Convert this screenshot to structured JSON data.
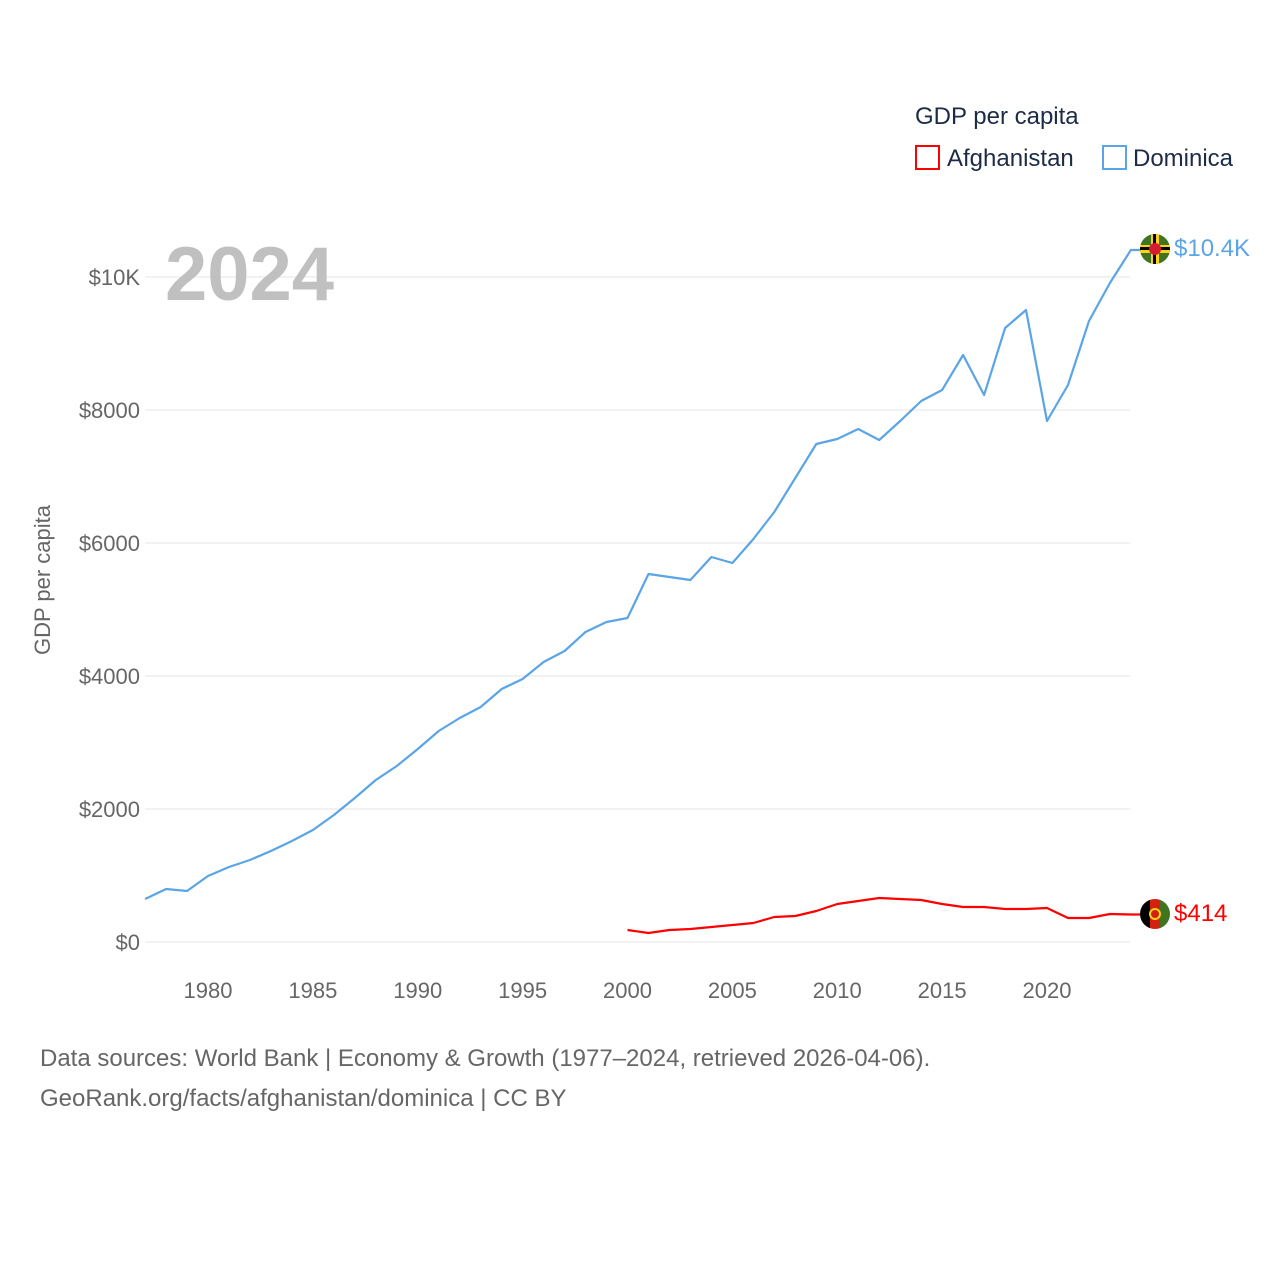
{
  "chart_data": {
    "type": "line",
    "title": "GDP per capita",
    "ylabel": "GDP per capita",
    "xlabel": "",
    "year_label": "2024",
    "xlim": [
      1977,
      2024
    ],
    "ylim": [
      0,
      10000
    ],
    "x_ticks": [
      1980,
      1985,
      1990,
      1995,
      2000,
      2005,
      2010,
      2015,
      2020
    ],
    "y_ticks": [
      0,
      2000,
      4000,
      6000,
      8000,
      10000
    ],
    "y_tick_labels": [
      "$0",
      "$2000",
      "$4000",
      "$6000",
      "$8000",
      "$10K"
    ],
    "grid": true,
    "legend_position": "top-right",
    "series": [
      {
        "name": "Afghanistan",
        "color": "#ff0000",
        "end_label": "$414",
        "flag": "afghanistan-flag",
        "x": [
          2000,
          2001,
          2002,
          2003,
          2004,
          2005,
          2006,
          2007,
          2008,
          2009,
          2010,
          2011,
          2012,
          2013,
          2014,
          2015,
          2016,
          2017,
          2018,
          2019,
          2020,
          2021,
          2022,
          2023,
          2024
        ],
        "values": [
          180,
          135,
          180,
          195,
          225,
          256,
          286,
          376,
          391,
          466,
          571,
          617,
          662,
          647,
          632,
          571,
          526,
          526,
          496,
          496,
          511,
          361,
          361,
          421,
          414
        ]
      },
      {
        "name": "Dominica",
        "color": "#5ba4e6",
        "end_label": "$10.4K",
        "flag": "dominica-flag",
        "x": [
          1977,
          1978,
          1979,
          1980,
          1981,
          1982,
          1983,
          1984,
          1985,
          1986,
          1987,
          1988,
          1989,
          1990,
          1991,
          1992,
          1993,
          1994,
          1995,
          1996,
          1997,
          1998,
          1999,
          2000,
          2001,
          2002,
          2003,
          2004,
          2005,
          2006,
          2007,
          2008,
          2009,
          2010,
          2011,
          2012,
          2013,
          2014,
          2015,
          2016,
          2017,
          2018,
          2019,
          2020,
          2021,
          2022,
          2023,
          2024
        ],
        "values": [
          647,
          797,
          767,
          992,
          1128,
          1233,
          1368,
          1519,
          1684,
          1910,
          2165,
          2436,
          2647,
          2902,
          3173,
          3368,
          3534,
          3805,
          3955,
          4211,
          4376,
          4662,
          4812,
          4872,
          5534,
          5489,
          5444,
          5789,
          5699,
          6060,
          6466,
          6977,
          7489,
          7564,
          7714,
          7549,
          7835,
          8135,
          8301,
          8827,
          8226,
          9233,
          9504,
          7835,
          8376,
          9338,
          9910,
          10406
        ]
      }
    ]
  },
  "footer": {
    "line1": "Data sources: World Bank | Economy & Growth (1977–2024, retrieved 2026-04-06).",
    "line2": "GeoRank.org/facts/afghanistan/dominica | CC BY"
  }
}
